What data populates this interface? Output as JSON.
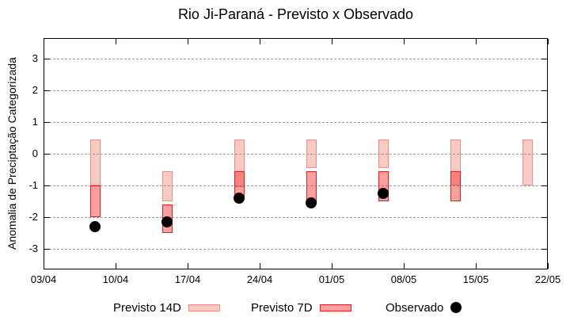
{
  "chart_data": {
    "type": "bar",
    "title": "Rio Ji-Paraná - Previsto x Observado",
    "ylabel": "Anomalia de Preciptação Categorizada",
    "xlabel": "",
    "ylim": [
      -3.65,
      3.65
    ],
    "yticks": [
      3,
      2,
      1,
      0,
      -1,
      -2,
      -3
    ],
    "grid": "horizontal dashed gridlines at integer y values",
    "legend_position": "below plot",
    "xrange_days": [
      0,
      49
    ],
    "xticks": [
      {
        "label": "03/04",
        "day": 0
      },
      {
        "label": "10/04",
        "day": 7
      },
      {
        "label": "17/04",
        "day": 14
      },
      {
        "label": "24/04",
        "day": 21
      },
      {
        "label": "01/05",
        "day": 28
      },
      {
        "label": "08/05",
        "day": 35
      },
      {
        "label": "15/05",
        "day": 42
      },
      {
        "label": "22/05",
        "day": 49
      }
    ],
    "series": [
      {
        "name": "Previsto 14D",
        "type": "range-bar",
        "fill": "rgba(240,90,70,0.32)",
        "stroke": "#ef8e80",
        "points": [
          {
            "date": "08/04",
            "day": 5,
            "high": 0.45,
            "low": -1.0
          },
          {
            "date": "15/04",
            "day": 12,
            "high": -0.55,
            "low": -1.5
          },
          {
            "date": "22/04",
            "day": 19,
            "high": 0.45,
            "low": -1.05
          },
          {
            "date": "29/04",
            "day": 26,
            "high": 0.45,
            "low": -0.45
          },
          {
            "date": "06/05",
            "day": 33,
            "high": 0.45,
            "low": -0.45
          },
          {
            "date": "13/05",
            "day": 40,
            "high": 0.45,
            "low": -1.0
          },
          {
            "date": "20/05",
            "day": 47,
            "high": 0.45,
            "low": -1.0
          }
        ]
      },
      {
        "name": "Previsto 7D",
        "type": "range-bar",
        "fill": "rgba(247,42,42,0.45)",
        "stroke": "#e51f1f",
        "points": [
          {
            "date": "08/04",
            "day": 5,
            "high": -1.0,
            "low": -2.0
          },
          {
            "date": "15/04",
            "day": 12,
            "high": -1.6,
            "low": -2.5
          },
          {
            "date": "22/04",
            "day": 19,
            "high": -0.55,
            "low": -1.35
          },
          {
            "date": "29/04",
            "day": 26,
            "high": -0.55,
            "low": -1.6
          },
          {
            "date": "06/05",
            "day": 33,
            "high": -0.55,
            "low": -1.5
          },
          {
            "date": "13/05",
            "day": 40,
            "high": -0.55,
            "low": -1.5
          }
        ]
      },
      {
        "name": "Observado",
        "type": "scatter",
        "fill": "#000000",
        "points": [
          {
            "date": "08/04",
            "day": 5,
            "value": -2.3
          },
          {
            "date": "15/04",
            "day": 12,
            "value": -2.15
          },
          {
            "date": "22/04",
            "day": 19,
            "value": -1.4
          },
          {
            "date": "29/04",
            "day": 26,
            "value": -1.55
          },
          {
            "date": "06/05",
            "day": 33,
            "value": -1.25
          }
        ]
      }
    ]
  }
}
